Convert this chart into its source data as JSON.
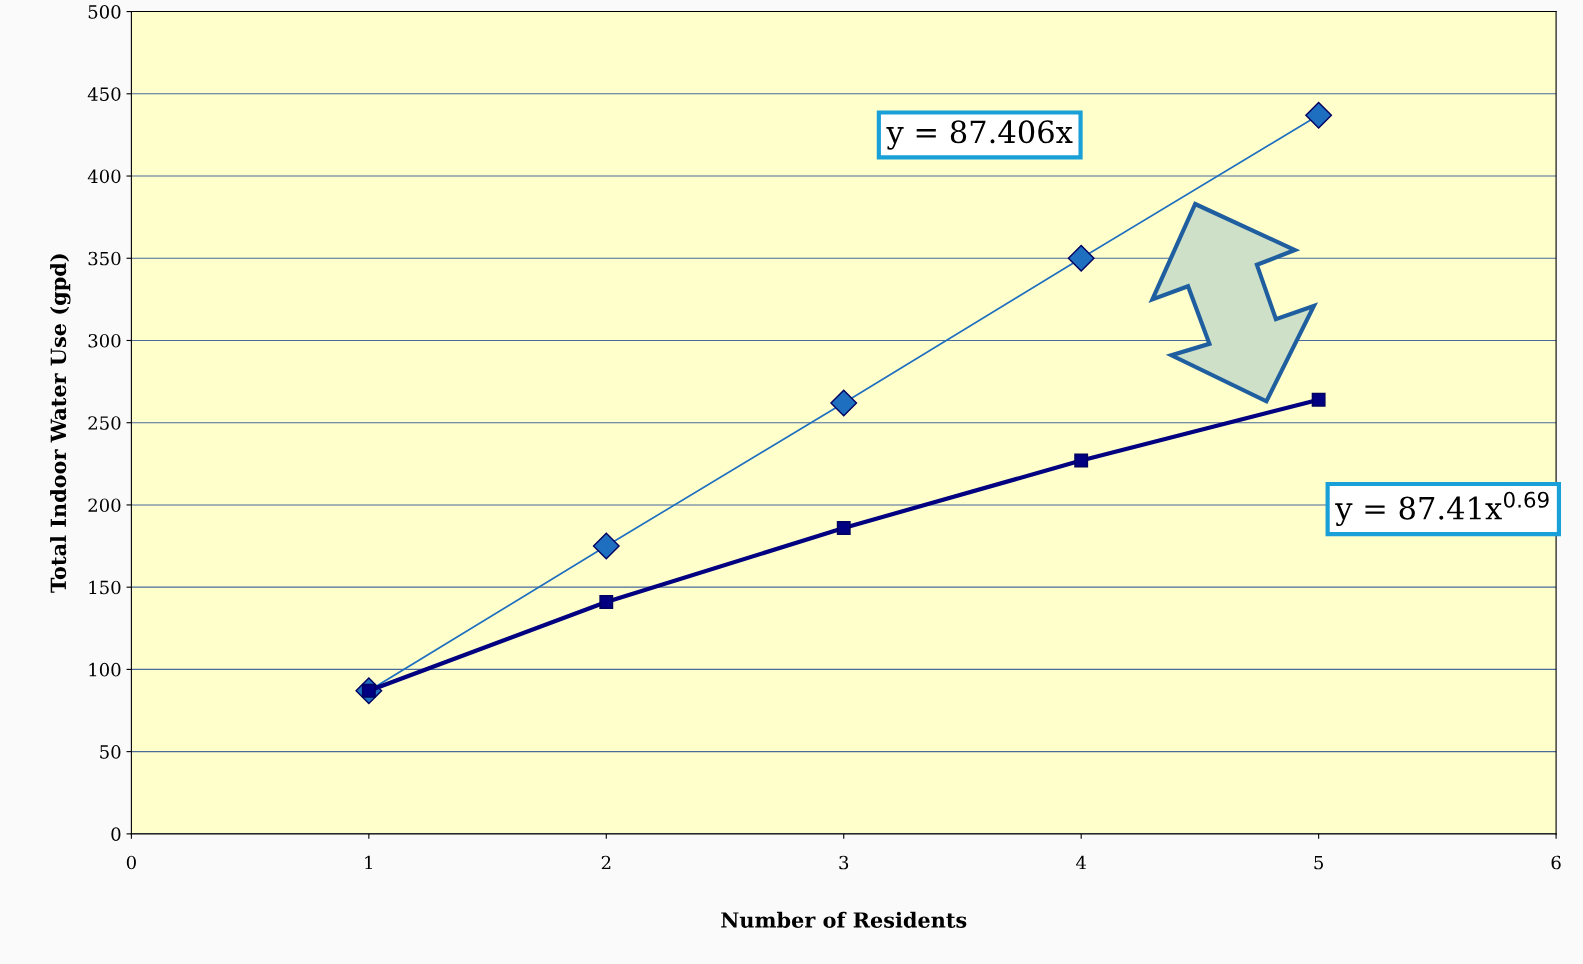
{
  "chart_data": {
    "type": "line",
    "xlabel": "Number of Residents",
    "ylabel": "Total Indoor Water Use (gpd)",
    "x": [
      1,
      2,
      3,
      4,
      5
    ],
    "series": [
      {
        "color": "#1f6fc0",
        "marker": "diamond",
        "values": [
          87,
          175,
          262,
          350,
          437
        ]
      },
      {
        "color": "#000080",
        "marker": "square",
        "values": [
          87,
          141,
          186,
          227,
          264
        ]
      }
    ],
    "annotations": [
      "y = 87.406x",
      "y = 87.41x$^{0.69}$"
    ],
    "xlim": [
      0,
      6
    ],
    "xticks": [
      0,
      1,
      2,
      3,
      4,
      5,
      6
    ],
    "ylim": [
      0,
      500
    ],
    "yticks": [
      0,
      50,
      100,
      150,
      200,
      250,
      300,
      350,
      400,
      450,
      500
    ],
    "grid": "y",
    "legend": false
  }
}
